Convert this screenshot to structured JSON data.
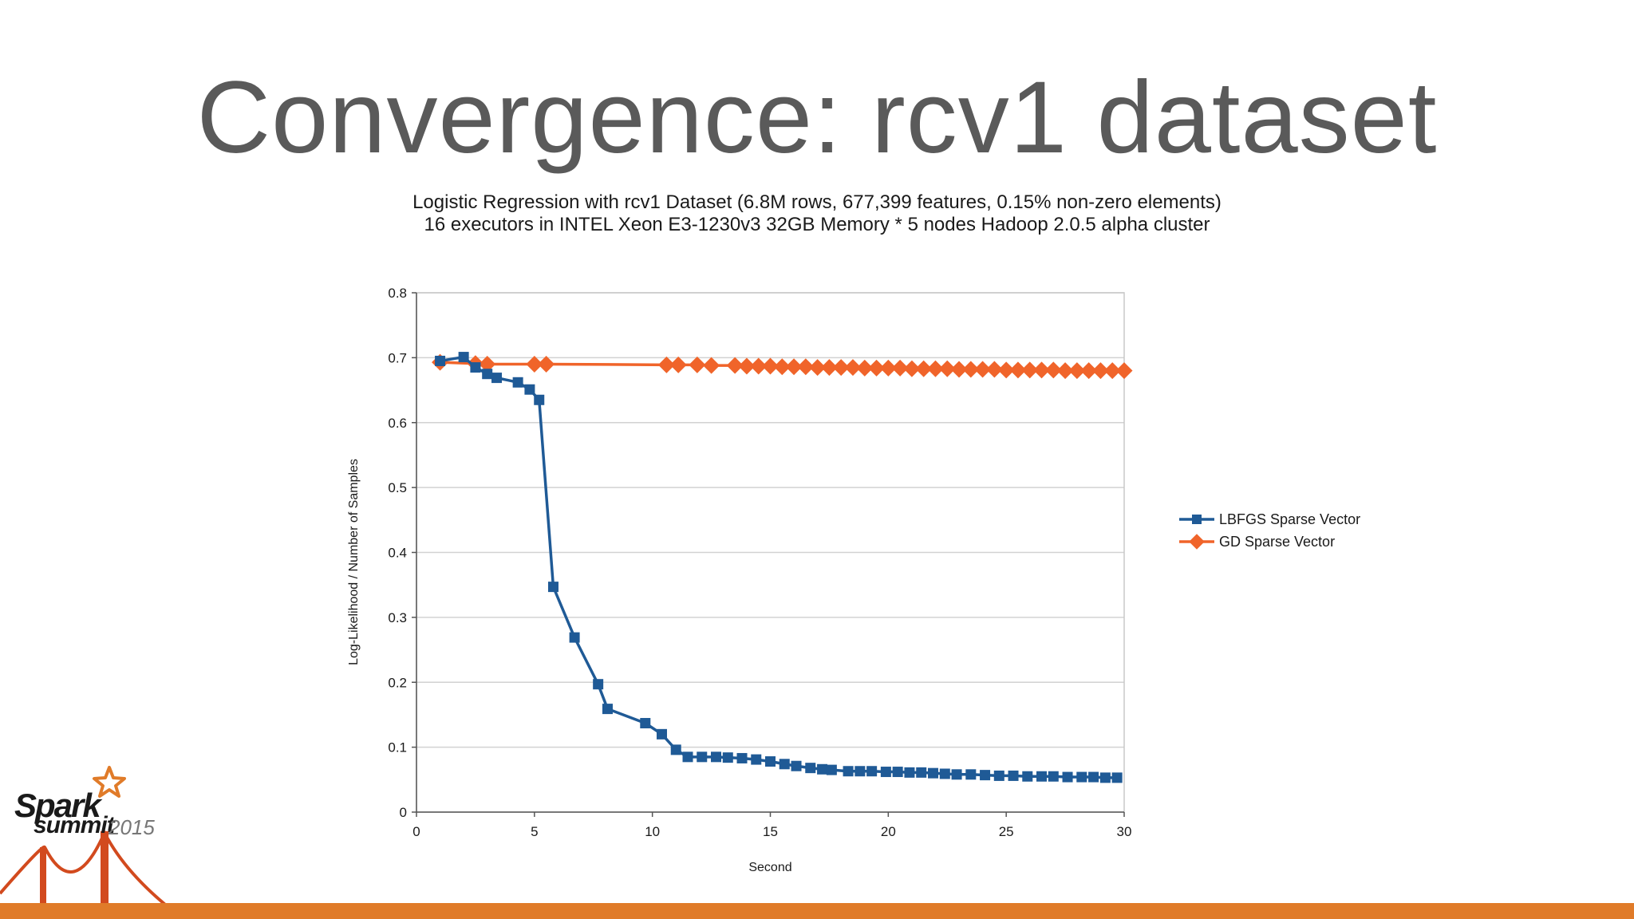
{
  "slide": {
    "title": "Convergence: rcv1 dataset",
    "caption_line1": "Logistic Regression with rcv1 Dataset (6.8M rows, 677,399 features, 0.15% non-zero elements)",
    "caption_line2": "16 executors in INTEL Xeon E3-1230v3 32GB Memory * 5 nodes Hadoop 2.0.5 alpha cluster",
    "logo_text_1": "Spark",
    "logo_text_2": "summit",
    "logo_year": "2015",
    "accent_color": "#e07b29"
  },
  "chart_data": {
    "type": "line",
    "title": "",
    "xlabel": "Second",
    "ylabel": "Log-Likelihood / Number of Samples",
    "xlim": [
      0,
      30
    ],
    "ylim": [
      0,
      0.8
    ],
    "x_ticks": [
      0,
      5,
      10,
      15,
      20,
      25,
      30
    ],
    "y_ticks": [
      0,
      0.1,
      0.2,
      0.3,
      0.4,
      0.5,
      0.6,
      0.7,
      0.8
    ],
    "grid": "horizontal",
    "legend_position": "right",
    "series": [
      {
        "name": "LBFGS Sparse Vector",
        "color": "#1f5a96",
        "marker": "square",
        "points": [
          [
            1.0,
            0.695
          ],
          [
            2.0,
            0.701
          ],
          [
            2.5,
            0.685
          ],
          [
            3.0,
            0.675
          ],
          [
            3.4,
            0.669
          ],
          [
            4.3,
            0.662
          ],
          [
            4.8,
            0.651
          ],
          [
            5.2,
            0.635
          ],
          [
            5.8,
            0.347
          ],
          [
            6.7,
            0.269
          ],
          [
            7.7,
            0.197
          ],
          [
            8.1,
            0.159
          ],
          [
            9.7,
            0.137
          ],
          [
            10.4,
            0.12
          ],
          [
            11.0,
            0.096
          ],
          [
            11.5,
            0.085
          ],
          [
            12.1,
            0.085
          ],
          [
            12.7,
            0.085
          ],
          [
            13.2,
            0.084
          ],
          [
            13.8,
            0.083
          ],
          [
            14.4,
            0.081
          ],
          [
            15.0,
            0.078
          ],
          [
            15.6,
            0.074
          ],
          [
            16.1,
            0.071
          ],
          [
            16.7,
            0.068
          ],
          [
            17.2,
            0.066
          ],
          [
            17.6,
            0.065
          ],
          [
            18.3,
            0.063
          ],
          [
            18.8,
            0.063
          ],
          [
            19.3,
            0.063
          ],
          [
            19.9,
            0.062
          ],
          [
            20.4,
            0.062
          ],
          [
            20.9,
            0.061
          ],
          [
            21.4,
            0.061
          ],
          [
            21.9,
            0.06
          ],
          [
            22.4,
            0.059
          ],
          [
            22.9,
            0.058
          ],
          [
            23.5,
            0.058
          ],
          [
            24.1,
            0.057
          ],
          [
            24.7,
            0.056
          ],
          [
            25.3,
            0.056
          ],
          [
            25.9,
            0.055
          ],
          [
            26.5,
            0.055
          ],
          [
            27.0,
            0.055
          ],
          [
            27.6,
            0.054
          ],
          [
            28.2,
            0.054
          ],
          [
            28.7,
            0.054
          ],
          [
            29.2,
            0.053
          ],
          [
            29.7,
            0.053
          ]
        ]
      },
      {
        "name": "GD Sparse Vector",
        "color": "#f0642a",
        "marker": "diamond",
        "points": [
          [
            1.0,
            0.693
          ],
          [
            2.5,
            0.691
          ],
          [
            3.0,
            0.69
          ],
          [
            5.0,
            0.69
          ],
          [
            5.5,
            0.69
          ],
          [
            10.6,
            0.689
          ],
          [
            11.1,
            0.689
          ],
          [
            11.9,
            0.689
          ],
          [
            12.5,
            0.688
          ],
          [
            13.5,
            0.688
          ],
          [
            14.0,
            0.687
          ],
          [
            14.5,
            0.687
          ],
          [
            15.0,
            0.687
          ],
          [
            15.5,
            0.686
          ],
          [
            16.0,
            0.686
          ],
          [
            16.5,
            0.686
          ],
          [
            17.0,
            0.685
          ],
          [
            17.5,
            0.685
          ],
          [
            18.0,
            0.685
          ],
          [
            18.5,
            0.685
          ],
          [
            19.0,
            0.684
          ],
          [
            19.5,
            0.684
          ],
          [
            20.0,
            0.684
          ],
          [
            20.5,
            0.684
          ],
          [
            21.0,
            0.683
          ],
          [
            21.5,
            0.683
          ],
          [
            22.0,
            0.683
          ],
          [
            22.5,
            0.683
          ],
          [
            23.0,
            0.682
          ],
          [
            23.5,
            0.682
          ],
          [
            24.0,
            0.682
          ],
          [
            24.5,
            0.682
          ],
          [
            25.0,
            0.681
          ],
          [
            25.5,
            0.681
          ],
          [
            26.0,
            0.681
          ],
          [
            26.5,
            0.681
          ],
          [
            27.0,
            0.681
          ],
          [
            27.5,
            0.68
          ],
          [
            28.0,
            0.68
          ],
          [
            28.5,
            0.68
          ],
          [
            29.0,
            0.68
          ],
          [
            29.5,
            0.68
          ],
          [
            30.0,
            0.68
          ]
        ]
      }
    ]
  }
}
